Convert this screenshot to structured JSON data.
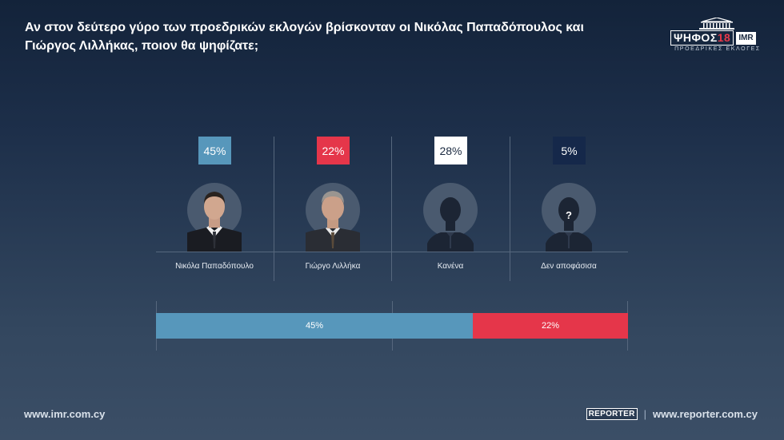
{
  "question": "Αν στον δεύτερο γύρο των προεδρικών εκλογών βρίσκονταν οι Νικόλας Παπαδόπουλος και Γιώργος Λιλλήκας, ποιον θα ψηφίζατε;",
  "logo": {
    "main": "ΨΗΦΟΣ",
    "year": "18",
    "imr": "IMR",
    "subtitle": "ΠΡΟΕΔΡΙΚΕΣ ΕΚΛΟΓΕΣ"
  },
  "colors": {
    "papadopoulos": "#5797bb",
    "lillikas": "#e5364a",
    "none": "#ffffff",
    "undecided": "#15284a"
  },
  "chart_data": {
    "type": "bar",
    "categories": [
      "Νικόλα Παπαδόπουλο",
      "Γιώργο Λιλλήκα",
      "Κανένα",
      "Δεν αποφάσισα"
    ],
    "values": [
      45,
      22,
      28,
      5
    ],
    "value_labels": [
      "45%",
      "22%",
      "28%",
      "5%"
    ],
    "stacked_bar": {
      "segments": [
        {
          "label": "45%",
          "value": 45
        },
        {
          "label": "22%",
          "value": 22
        }
      ]
    }
  },
  "footer": {
    "left": "www.imr.com.cy",
    "reporter": "REPORTER",
    "right": "www.reporter.com.cy"
  }
}
